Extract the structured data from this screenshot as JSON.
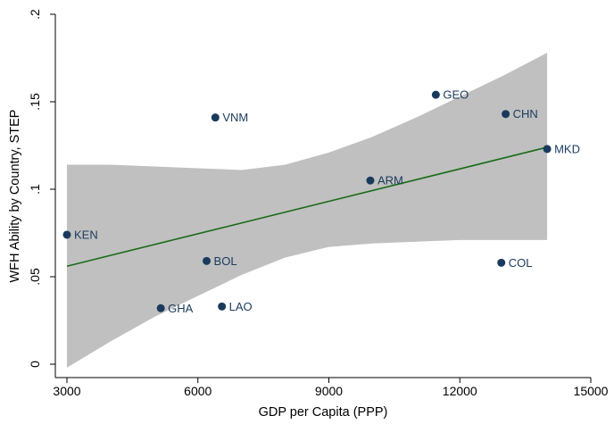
{
  "chart_data": {
    "type": "scatter",
    "title": "",
    "xlabel": "GDP per Capita (PPP)",
    "ylabel": "WFH Ability by Country, STEP",
    "xlim": [
      3000,
      15000
    ],
    "ylim": [
      0,
      0.2
    ],
    "x_ticks": [
      3000,
      6000,
      9000,
      12000,
      15000
    ],
    "x_tick_labels": [
      "3000",
      "6000",
      "9000",
      "12000",
      "15000"
    ],
    "y_ticks": [
      0,
      0.05,
      0.1,
      0.15,
      0.2
    ],
    "y_tick_labels": [
      "0",
      ".05",
      ".1",
      ".15",
      ".2"
    ],
    "grid": false,
    "legend": "none",
    "colors": {
      "points": "#1a3a5c",
      "labels": "#1a3a5c",
      "fit_line": "#1a6b1a",
      "confidence_band": "#c0c0c0"
    },
    "points": [
      {
        "label": "KEN",
        "x": 3000,
        "y": 0.074
      },
      {
        "label": "GHA",
        "x": 5150,
        "y": 0.032
      },
      {
        "label": "BOL",
        "x": 6200,
        "y": 0.059
      },
      {
        "label": "VNM",
        "x": 6400,
        "y": 0.141
      },
      {
        "label": "LAO",
        "x": 6550,
        "y": 0.033
      },
      {
        "label": "ARM",
        "x": 9950,
        "y": 0.105
      },
      {
        "label": "GEO",
        "x": 11450,
        "y": 0.154
      },
      {
        "label": "COL",
        "x": 12950,
        "y": 0.058
      },
      {
        "label": "CHN",
        "x": 13050,
        "y": 0.143
      },
      {
        "label": "MKD",
        "x": 14000,
        "y": 0.123
      }
    ],
    "fit_line": {
      "x": [
        3000,
        14000
      ],
      "y": [
        0.056,
        0.124
      ]
    },
    "confidence_band": {
      "x": [
        3000,
        4000,
        5000,
        6000,
        7000,
        8000,
        9000,
        10000,
        11000,
        12000,
        13000,
        14000
      ],
      "upper": [
        0.114,
        0.114,
        0.113,
        0.112,
        0.111,
        0.114,
        0.121,
        0.13,
        0.141,
        0.153,
        0.165,
        0.178
      ],
      "lower": [
        -0.002,
        0.013,
        0.027,
        0.039,
        0.051,
        0.061,
        0.067,
        0.069,
        0.07,
        0.071,
        0.071,
        0.071
      ]
    }
  }
}
